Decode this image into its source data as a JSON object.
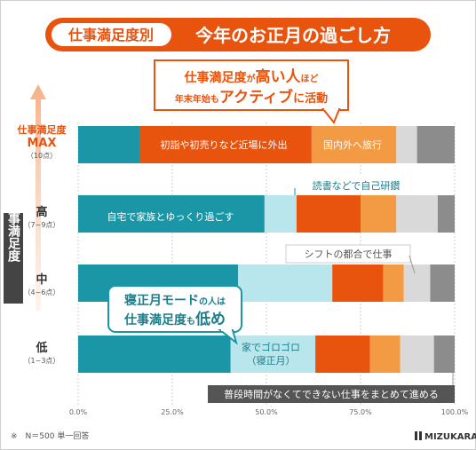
{
  "header": {
    "badge": "仕事満足度別",
    "title": "今年のお正月の過ごし方"
  },
  "callouts": {
    "top": {
      "line1_a": "仕事満足度",
      "line1_b": "が",
      "line1_c": "高い人",
      "line1_d": "ほど",
      "line2_a": "年末年始も",
      "line2_b": "アクティブ",
      "line2_c": "に活動"
    },
    "mid": {
      "line1_a": "寝正月モード",
      "line1_b": "の人は",
      "line2_a": "仕事満足度",
      "line2_b": "も",
      "line2_c": "低め"
    }
  },
  "y_axis": {
    "label": "仕事満足度",
    "groups": [
      {
        "title": "仕事満足度",
        "title2": "MAX",
        "sub": "（10点）"
      },
      {
        "title": "高",
        "sub": "（7~9点）"
      },
      {
        "title": "中",
        "sub": "（4~6点）"
      },
      {
        "title": "低",
        "sub": "（1~3点）"
      }
    ]
  },
  "segment_labels": {
    "outing": "初詣や初売りなど近場に外出",
    "travel": "国内外へ旅行",
    "home": "自宅で家族とゆっくり過ごす",
    "reading": "読書などで自己研鑽",
    "shift": "シフトの都合で仕事",
    "sleep_1": "家でゴロゴロ",
    "sleep_2": "（寝正月）",
    "work": "普段時間がなくてできない仕事をまとめて進める"
  },
  "footnote": "※　N＝500 単一回答",
  "logo": "MIZUKARA",
  "colors": {
    "home": "#1a96a6",
    "reading": "#b9e6ec",
    "outing": "#e8530e",
    "travel": "#f39a45",
    "work": "#d9d9d9",
    "shift": "#8c8c8c",
    "accent": "#e8530e",
    "dark": "#444444"
  },
  "chart_data": {
    "type": "bar",
    "orientation": "horizontal",
    "stacked": true,
    "categories": [
      "MAX（10点）",
      "高（7~9点）",
      "中（4~6点）",
      "低（1~3点）"
    ],
    "xlim": [
      0,
      100
    ],
    "xticks": [
      "0.0%",
      "25.0%",
      "50.0%",
      "75.0%",
      "100.0%"
    ],
    "series": [
      {
        "name": "自宅で家族とゆっくり過ごす",
        "color": "#1a96a6",
        "values": [
          16.5,
          49.5,
          42.5,
          40.5
        ]
      },
      {
        "name": "読書などで自己研鑽",
        "color": "#b9e6ec",
        "values": [
          0,
          8.5,
          25.0,
          22.5
        ]
      },
      {
        "name": "初詣や初売りなど近場に外出",
        "color": "#e8530e",
        "values": [
          45.5,
          17.0,
          13.5,
          14.5
        ]
      },
      {
        "name": "国内外へ旅行",
        "color": "#f39a45",
        "values": [
          22.5,
          9.5,
          5.5,
          8.0
        ]
      },
      {
        "name": "普段時間がなくてできない仕事をまとめて進める",
        "color": "#d9d9d9",
        "values": [
          5.5,
          11.0,
          7.0,
          9.0
        ]
      },
      {
        "name": "シフトの都合で仕事",
        "color": "#8c8c8c",
        "values": [
          10.0,
          4.5,
          6.5,
          5.5
        ]
      }
    ]
  }
}
